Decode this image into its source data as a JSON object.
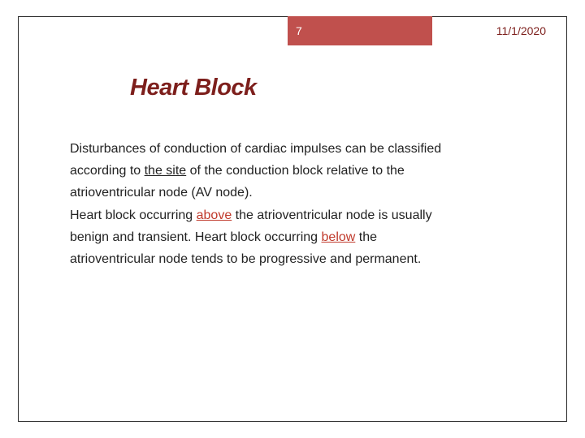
{
  "colors": {
    "header_bg": "#c0504d",
    "header_text": "#ffffff",
    "date_text": "#7d1f1c",
    "title_color": "#7d1f1c",
    "body_color": "#222222",
    "accent_color": "#c0392b",
    "border_color": "#2a2a2a",
    "background": "#ffffff"
  },
  "typography": {
    "title_fontsize": 29,
    "title_fontweight": "bold",
    "body_fontsize": 16,
    "header_fontsize": 14
  },
  "header": {
    "page_number": "7",
    "date": "11/1/2020"
  },
  "title": "Heart Block",
  "body": {
    "seg1": "Disturbances of conduction of cardiac impulses can be classified according to ",
    "seg2_underlined": "the site",
    "seg3": " of the conduction block relative to the atrioventricular node (AV node).",
    "seg4_break": "",
    "seg5": "Heart block occurring ",
    "seg6_accent_underlined": "above",
    "seg7": " the atrioventricular node is usually benign and transient. Heart block occurring ",
    "seg8_accent_underlined": "below",
    "seg9": " the atrioventricular node tends to be progressive and permanent."
  }
}
